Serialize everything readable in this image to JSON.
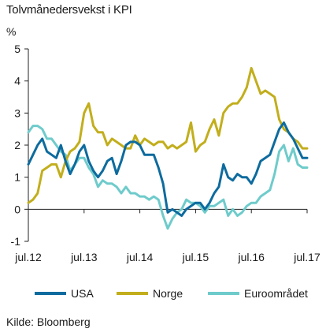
{
  "header": {
    "title": "Tolvmånedersvekst i KPI",
    "unit": "%"
  },
  "footer": {
    "source": "Kilde: Bloomberg"
  },
  "colors": {
    "usa": "#0d6b9e",
    "norge": "#c2ae1c",
    "euro": "#6fcbcb",
    "axis": "#222222",
    "grid": "#cccccc"
  },
  "chart_data": {
    "type": "line",
    "title": "Tolvmånedersvekst i KPI",
    "ylabel": "%",
    "xlabel": "",
    "ylim": [
      -1,
      5
    ],
    "yticks": [
      5,
      4,
      3,
      2,
      1,
      0,
      -1
    ],
    "x_start": "2012-07",
    "x_end": "2017-07",
    "xticks": [
      {
        "date": "2012-07",
        "label": "jul.12"
      },
      {
        "date": "2013-07",
        "label": "jul.13"
      },
      {
        "date": "2014-07",
        "label": "jul.14"
      },
      {
        "date": "2015-07",
        "label": "jul.15"
      },
      {
        "date": "2016-07",
        "label": "jul.16"
      },
      {
        "date": "2017-07",
        "label": "jul.17"
      }
    ],
    "grid": false,
    "legend": "bottom",
    "series": [
      {
        "name": "USA",
        "key": "usa",
        "x": [
          "2012-07",
          "2012-08",
          "2012-09",
          "2012-10",
          "2012-11",
          "2012-12",
          "2013-01",
          "2013-02",
          "2013-03",
          "2013-04",
          "2013-05",
          "2013-06",
          "2013-07",
          "2013-08",
          "2013-09",
          "2013-10",
          "2013-11",
          "2013-12",
          "2014-01",
          "2014-02",
          "2014-03",
          "2014-04",
          "2014-05",
          "2014-06",
          "2014-07",
          "2014-08",
          "2014-09",
          "2014-10",
          "2014-11",
          "2014-12",
          "2015-01",
          "2015-02",
          "2015-03",
          "2015-04",
          "2015-05",
          "2015-06",
          "2015-07",
          "2015-08",
          "2015-09",
          "2015-10",
          "2015-11",
          "2015-12",
          "2016-01",
          "2016-02",
          "2016-03",
          "2016-04",
          "2016-05",
          "2016-06",
          "2016-07",
          "2016-08",
          "2016-09",
          "2016-10",
          "2016-11",
          "2016-12",
          "2017-01",
          "2017-02",
          "2017-03",
          "2017-04",
          "2017-05",
          "2017-06",
          "2017-07"
        ],
        "values": [
          1.4,
          1.7,
          2.0,
          2.2,
          1.8,
          1.7,
          1.6,
          2.0,
          1.5,
          1.1,
          1.4,
          1.8,
          2.0,
          1.5,
          1.2,
          1.0,
          1.2,
          1.5,
          1.6,
          1.1,
          1.5,
          2.0,
          2.1,
          2.1,
          2.0,
          1.7,
          1.7,
          1.7,
          1.3,
          0.8,
          -0.1,
          0.0,
          -0.1,
          -0.2,
          0.0,
          0.1,
          0.2,
          0.2,
          0.0,
          0.2,
          0.5,
          0.7,
          1.4,
          1.0,
          0.9,
          1.1,
          1.0,
          1.0,
          0.8,
          1.1,
          1.5,
          1.6,
          1.7,
          2.1,
          2.5,
          2.7,
          2.4,
          2.2,
          1.9,
          1.6,
          1.6
        ]
      },
      {
        "name": "Norge",
        "key": "norge",
        "x": [
          "2012-07",
          "2012-08",
          "2012-09",
          "2012-10",
          "2012-11",
          "2012-12",
          "2013-01",
          "2013-02",
          "2013-03",
          "2013-04",
          "2013-05",
          "2013-06",
          "2013-07",
          "2013-08",
          "2013-09",
          "2013-10",
          "2013-11",
          "2013-12",
          "2014-01",
          "2014-02",
          "2014-03",
          "2014-04",
          "2014-05",
          "2014-06",
          "2014-07",
          "2014-08",
          "2014-09",
          "2014-10",
          "2014-11",
          "2014-12",
          "2015-01",
          "2015-02",
          "2015-03",
          "2015-04",
          "2015-05",
          "2015-06",
          "2015-07",
          "2015-08",
          "2015-09",
          "2015-10",
          "2015-11",
          "2015-12",
          "2016-01",
          "2016-02",
          "2016-03",
          "2016-04",
          "2016-05",
          "2016-06",
          "2016-07",
          "2016-08",
          "2016-09",
          "2016-10",
          "2016-11",
          "2016-12",
          "2017-01",
          "2017-02",
          "2017-03",
          "2017-04",
          "2017-05",
          "2017-06",
          "2017-07"
        ],
        "values": [
          0.2,
          0.3,
          0.5,
          1.2,
          1.3,
          1.4,
          1.4,
          1.0,
          1.5,
          1.8,
          1.9,
          2.1,
          3.0,
          3.3,
          2.6,
          2.4,
          2.4,
          2.0,
          2.2,
          2.1,
          2.0,
          1.9,
          1.9,
          2.3,
          2.0,
          2.2,
          2.1,
          2.0,
          2.1,
          2.1,
          1.9,
          2.0,
          1.9,
          2.0,
          2.1,
          2.7,
          1.8,
          2.0,
          2.1,
          2.5,
          2.8,
          2.3,
          3.0,
          3.2,
          3.3,
          3.3,
          3.5,
          3.8,
          4.4,
          4.0,
          3.6,
          3.7,
          3.6,
          3.5,
          2.8,
          2.5,
          2.4,
          2.2,
          2.1,
          1.9,
          1.9
        ]
      },
      {
        "name": "Euroområdet",
        "key": "euro",
        "x": [
          "2012-07",
          "2012-08",
          "2012-09",
          "2012-10",
          "2012-11",
          "2012-12",
          "2013-01",
          "2013-02",
          "2013-03",
          "2013-04",
          "2013-05",
          "2013-06",
          "2013-07",
          "2013-08",
          "2013-09",
          "2013-10",
          "2013-11",
          "2013-12",
          "2014-01",
          "2014-02",
          "2014-03",
          "2014-04",
          "2014-05",
          "2014-06",
          "2014-07",
          "2014-08",
          "2014-09",
          "2014-10",
          "2014-11",
          "2014-12",
          "2015-01",
          "2015-02",
          "2015-03",
          "2015-04",
          "2015-05",
          "2015-06",
          "2015-07",
          "2015-08",
          "2015-09",
          "2015-10",
          "2015-11",
          "2015-12",
          "2016-01",
          "2016-02",
          "2016-03",
          "2016-04",
          "2016-05",
          "2016-06",
          "2016-07",
          "2016-08",
          "2016-09",
          "2016-10",
          "2016-11",
          "2016-12",
          "2017-01",
          "2017-02",
          "2017-03",
          "2017-04",
          "2017-05",
          "2017-06",
          "2017-07"
        ],
        "values": [
          2.4,
          2.6,
          2.6,
          2.5,
          2.2,
          2.2,
          2.0,
          1.8,
          1.7,
          1.2,
          1.4,
          1.6,
          1.6,
          1.3,
          1.1,
          0.7,
          0.9,
          0.8,
          0.8,
          0.7,
          0.5,
          0.7,
          0.5,
          0.5,
          0.4,
          0.4,
          0.3,
          0.4,
          0.3,
          -0.2,
          -0.6,
          -0.3,
          -0.1,
          0.0,
          0.3,
          0.2,
          0.2,
          0.1,
          -0.1,
          0.1,
          0.1,
          0.2,
          0.3,
          -0.2,
          0.0,
          -0.2,
          -0.1,
          0.1,
          0.2,
          0.2,
          0.4,
          0.5,
          0.6,
          1.1,
          1.8,
          2.0,
          1.5,
          1.9,
          1.4,
          1.3,
          1.3
        ]
      }
    ]
  }
}
